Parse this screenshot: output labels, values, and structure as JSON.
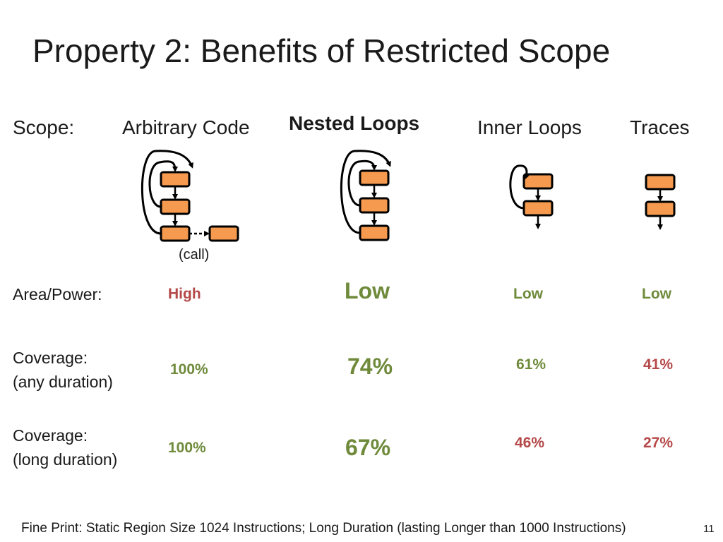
{
  "slide": {
    "title": "Property 2: Benefits of Restricted Scope",
    "page_number": "11",
    "fine_print": "Fine Print: Static Region Size 1024 Instructions; Long Duration (lasting Longer than 1000 Instructions)"
  },
  "table": {
    "scope_label": "Scope:",
    "columns": [
      "Arbitrary Code",
      "Nested Loops",
      "Inner Loops",
      "Traces"
    ],
    "call_label": "(call)",
    "rows": {
      "area_power": {
        "label": "Area/Power:",
        "values": [
          "High",
          "Low",
          "Low",
          "Low"
        ]
      },
      "coverage_any": {
        "label_line1": "Coverage:",
        "label_line2": "(any duration)",
        "values": [
          "100%",
          "74%",
          "61%",
          "41%"
        ]
      },
      "coverage_long": {
        "label_line1": "Coverage:",
        "label_line2": "(long duration)",
        "values": [
          "100%",
          "67%",
          "46%",
          "27%"
        ]
      }
    }
  },
  "colors": {
    "block_fill": "#f59a4f",
    "good": "#6e8a3a",
    "bad": "#b54848"
  }
}
